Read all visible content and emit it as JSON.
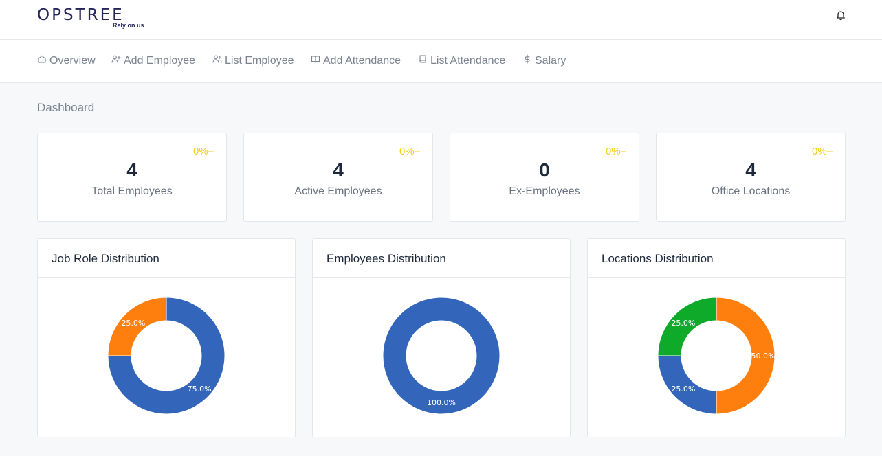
{
  "brand": {
    "name": "OPSTREE",
    "tagline": "Rely on us"
  },
  "header": {
    "bell_icon": "bell-icon"
  },
  "nav": {
    "items": [
      {
        "label": "Overview",
        "icon": "home-icon"
      },
      {
        "label": "Add Employee",
        "icon": "user-plus-icon"
      },
      {
        "label": "List Employee",
        "icon": "users-icon"
      },
      {
        "label": "Add Attendance",
        "icon": "book-open-icon"
      },
      {
        "label": "List Attendance",
        "icon": "book-icon"
      },
      {
        "label": "Salary",
        "icon": "dollar-icon"
      }
    ]
  },
  "page": {
    "title": "Dashboard"
  },
  "stats": [
    {
      "value": "4",
      "label": "Total Employees",
      "change": "0%",
      "change_icon": "minus-icon"
    },
    {
      "value": "4",
      "label": "Active Employees",
      "change": "0%",
      "change_icon": "minus-icon"
    },
    {
      "value": "0",
      "label": "Ex-Employees",
      "change": "0%",
      "change_icon": "minus-icon"
    },
    {
      "value": "4",
      "label": "Office Locations",
      "change": "0%",
      "change_icon": "minus-icon"
    }
  ],
  "colors": {
    "blue": "#3366bb",
    "orange": "#ff7f0e",
    "green": "#0faa2a",
    "change": "#f0cf1a"
  },
  "chart_data": [
    {
      "type": "pie",
      "title": "Job Role Distribution",
      "slices": [
        {
          "label": "75.0%",
          "value": 75,
          "color": "#3366bb"
        },
        {
          "label": "25.0%",
          "value": 25,
          "color": "#ff7f0e"
        }
      ]
    },
    {
      "type": "pie",
      "title": "Employees Distribution",
      "slices": [
        {
          "label": "100.0%",
          "value": 100,
          "color": "#3366bb"
        }
      ]
    },
    {
      "type": "pie",
      "title": "Locations Distribution",
      "slices": [
        {
          "label": "50.0%",
          "value": 50,
          "color": "#ff7f0e"
        },
        {
          "label": "25.0%",
          "value": 25,
          "color": "#3366bb"
        },
        {
          "label": "25.0%",
          "value": 25,
          "color": "#0faa2a"
        }
      ]
    }
  ]
}
